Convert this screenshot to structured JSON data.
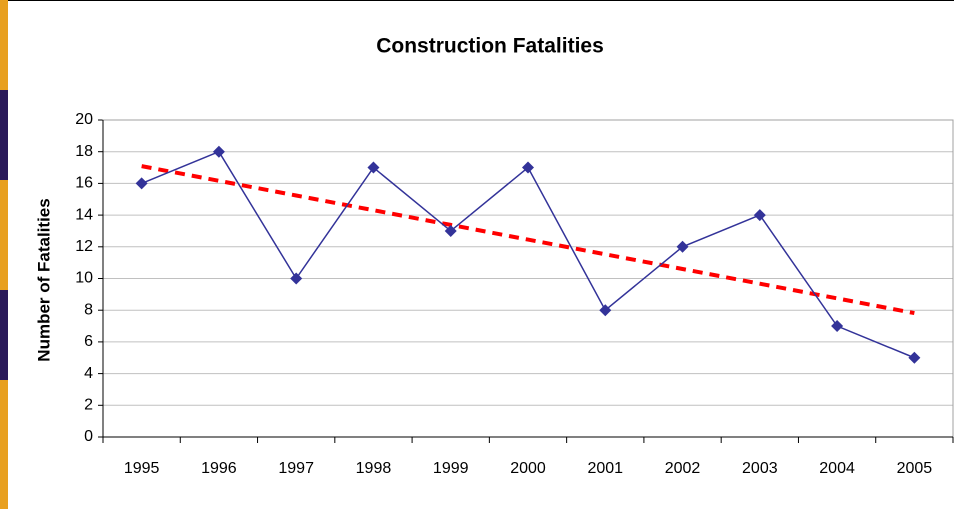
{
  "chart_data": {
    "type": "line",
    "title": "Construction Fatalities",
    "ylabel": "Number of Fatalities",
    "categories": [
      "1995",
      "1996",
      "1997",
      "1998",
      "1999",
      "2000",
      "2001",
      "2002",
      "2003",
      "2004",
      "2005"
    ],
    "series": [
      {
        "color": "#333399",
        "values": [
          16,
          18,
          10,
          17,
          13,
          17,
          8,
          12,
          14,
          7,
          5
        ]
      }
    ],
    "trendline": {
      "type": "linear",
      "color": "#ff0000"
    },
    "ylim": [
      0,
      20
    ],
    "yticks": [
      0,
      2,
      4,
      6,
      8,
      10,
      12,
      14,
      16,
      18,
      20
    ],
    "grid": true
  }
}
